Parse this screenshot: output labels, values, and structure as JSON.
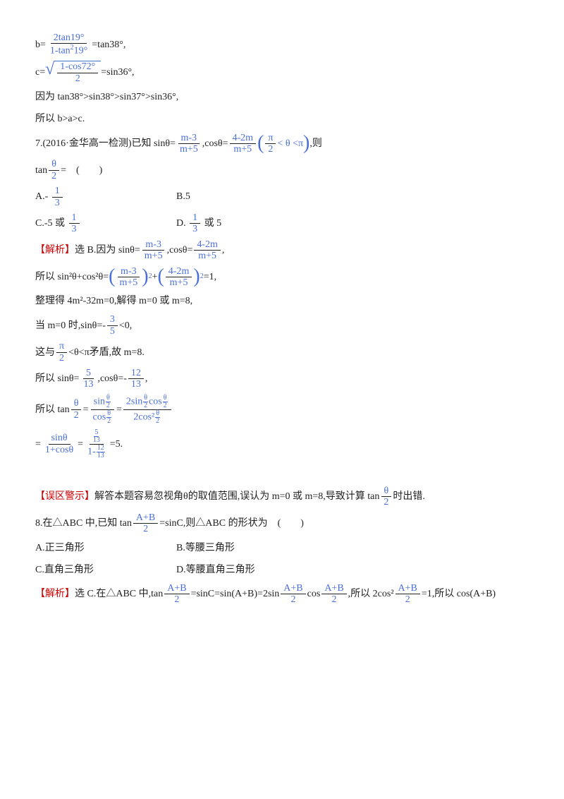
{
  "colors": {
    "blue": "#4a6fd8",
    "red": "#cc0000",
    "text": "#222222",
    "background": "#ffffff"
  },
  "typography": {
    "body_fontsize": 14,
    "sup_fontsize": 10,
    "big_paren_fontsize": 28
  },
  "eq_b": {
    "lhs": "b=",
    "num": "2tan19°",
    "den_l": "1-tan",
    "den_sup": "2",
    "den_r": "19°",
    "rhs": "=tan38°,"
  },
  "eq_c": {
    "lhs": "c=",
    "num": "1-cos72°",
    "den": "2",
    "rhs": "=sin36°,"
  },
  "because": "因为 tan38°>sin38°>sin37°>sin36°,",
  "so": "所以 b>a>c.",
  "q7": {
    "prefix": "7.(2016·金华高一检测)已知 sinθ=",
    "f1_num": "m-3",
    "f1_den": "m+5",
    "middle": ",cosθ=",
    "f2_num": "4-2m",
    "f2_den": "m+5",
    "cond_l": "π",
    "cond_l_den": "2",
    "cond_lt1": " < θ < ",
    "cond_r": "π",
    "tail": ",则",
    "tan_lhs": "tan",
    "tan_num": "θ",
    "tan_den": "2",
    "eq": "=　(　　)",
    "optA_pre": "A.-",
    "optA_num": "1",
    "optA_den": "3",
    "optB": "B.5",
    "optC_pre": "C.-5 或 ",
    "optC_num": "1",
    "optC_den": "3",
    "optD_pre": "D.",
    "optD_num": "1",
    "optD_den": "3",
    "optD_post": " 或 5"
  },
  "sol7": {
    "tag": "【解析】",
    "first": "选 B.因为 sinθ=",
    "f1_num": "m-3",
    "f1_den": "m+5",
    "mid": ",cosθ=",
    "f2_num": "4-2m",
    "f2_den": "m+5",
    "comma": ",",
    "second_pre": "所以 sin²θ+cos²θ=",
    "sq1_num": "m-3",
    "sq1_den": "m+5",
    "sq_sup": "2",
    "plus": "+",
    "sq2_num": "4-2m",
    "sq2_den": "m+5",
    "eq1": "=1,",
    "line3": "整理得 4m²-32m=0,解得 m=0 或 m=8,",
    "line4_pre": "当 m=0 时,sinθ=-",
    "line4_num": "3",
    "line4_den": "5",
    "line4_post": "<0,",
    "line5_pre": "这与",
    "line5_num": "π",
    "line5_den": "2",
    "line5_post": "<θ<π矛盾,故 m=8.",
    "line6_pre": "所以 sinθ=",
    "line6a_num": "5",
    "line6a_den": "13",
    "line6_mid": ",cosθ=-",
    "line6b_num": "12",
    "line6b_den": "13",
    "line6_post": ",",
    "line7_pre": "所以 tan",
    "line7_th_num": "θ",
    "line7_th_den": "2",
    "eq": "=",
    "line7_f1_num_l": "sin",
    "line7_f1_num_th_n": "θ",
    "line7_f1_num_th_d": "2",
    "line7_f1_den_l": "cos",
    "line7_f2_num_l": "2sin",
    "line7_f2_num_mid": "cos",
    "line7_f2_den_l": "2cos²",
    "line8_f1_num": "sinθ",
    "line8_f1_den": "1+cosθ",
    "line8_f2_top_n": "5",
    "line8_f2_top_d": "13",
    "line8_f2_bot_pre": "1-",
    "line8_f2_bot_n": "12",
    "line8_f2_bot_d": "13",
    "line8_res": "=5."
  },
  "warn": {
    "tag": "【误区警示】",
    "text1": "解答本题容易忽视角θ的取值范围,误认为 m=0 或 m=8,导致计算 tan",
    "num": "θ",
    "den": "2",
    "text2": "时出错."
  },
  "q8": {
    "pre": "8.在△ABC 中,已知 tan",
    "num": "A+B",
    "den": "2",
    "mid": "=sinC,则△ABC 的形状为　(　　)",
    "optA": "A.正三角形",
    "optB": "B.等腰三角形",
    "optC": "C.直角三角形",
    "optD": "D.等腰直角三角形"
  },
  "sol8": {
    "tag": "【解析】",
    "pre": "选 C.在△ABC 中,tan",
    "f1_num": "A+B",
    "f1_den": "2",
    "m1": "=sinC=sin(A+B)=2sin",
    "f2_num": "A+B",
    "f2_den": "2",
    "m2": "cos",
    "f3_num": "A+B",
    "f3_den": "2",
    "m3": ",所以 2cos²",
    "f4_num": "A+B",
    "f4_den": "2",
    "m4": "=1,所以 cos(A+B)"
  }
}
